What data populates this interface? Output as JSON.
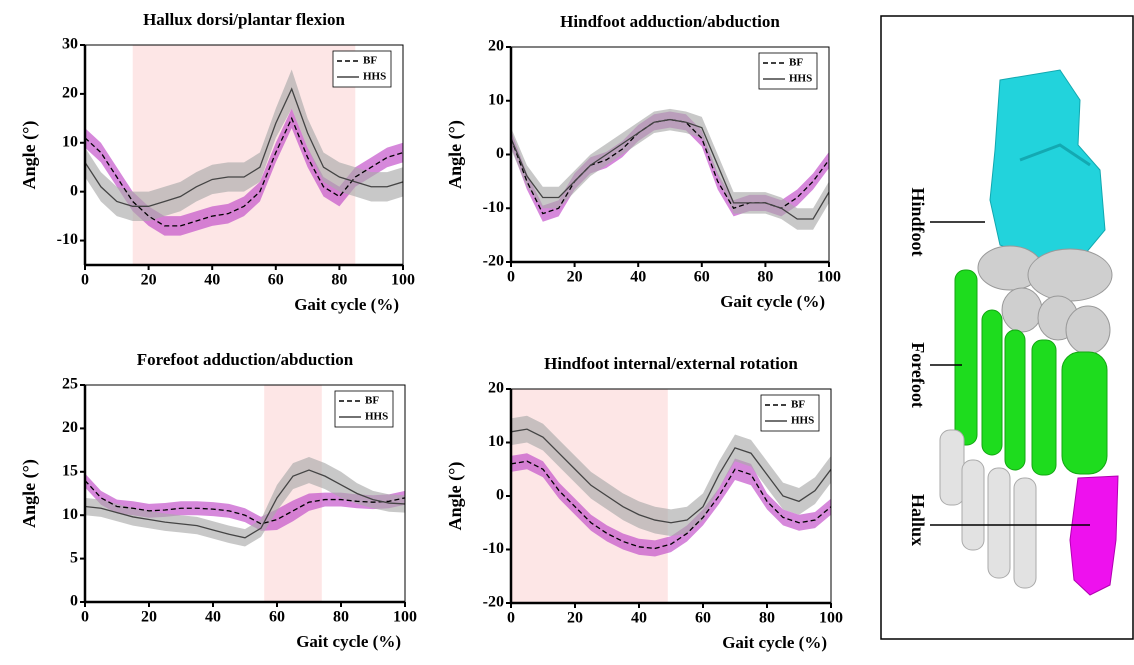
{
  "chart_data": [
    {
      "type": "line",
      "title": "Hallux dorsi/plantar flexion",
      "x_label": "Gait cycle (%)",
      "y_label": "Angle (°)",
      "xlim": [
        0,
        100
      ],
      "xticks": [
        0,
        20,
        40,
        60,
        80,
        100
      ],
      "ylim": [
        -15,
        30
      ],
      "yticks": [
        -10,
        0,
        10,
        20,
        30
      ],
      "highlight": [
        15,
        85
      ],
      "highlight_color": "#fde6e6",
      "legend": "upper right",
      "x": [
        0,
        5,
        10,
        15,
        20,
        25,
        30,
        35,
        40,
        45,
        50,
        55,
        60,
        65,
        70,
        75,
        80,
        85,
        90,
        95,
        100
      ],
      "series": [
        {
          "name": "BF",
          "color": "#000000",
          "dashed": true,
          "band_color": "#c048c8",
          "values": [
            11,
            8,
            3,
            -2,
            -5,
            -7,
            -7,
            -6,
            -5,
            -4.5,
            -3,
            0,
            8,
            15,
            7,
            1,
            -1,
            3,
            5,
            7,
            8
          ],
          "errors": [
            2,
            2,
            2,
            2,
            2,
            2,
            2,
            2,
            2,
            2,
            2,
            2,
            2,
            2,
            2,
            2,
            2,
            2,
            2,
            2,
            2
          ]
        },
        {
          "name": "HHS",
          "color": "#444444",
          "dashed": false,
          "band_color": "#aaaaaa",
          "values": [
            6,
            1,
            -2,
            -3,
            -3,
            -2,
            -1,
            1,
            2.5,
            3,
            3,
            5,
            14,
            21,
            12,
            5,
            3,
            2,
            1,
            1,
            2
          ],
          "errors": [
            3,
            3,
            3,
            3,
            3,
            3,
            3,
            3,
            3,
            3,
            3,
            3,
            3,
            4,
            3,
            3,
            3,
            3,
            3,
            3,
            3
          ]
        }
      ]
    },
    {
      "type": "line",
      "title": "Hindfoot adduction/abduction",
      "x_label": "Gait cycle (%)",
      "y_label": "Angle (°)",
      "xlim": [
        0,
        100
      ],
      "xticks": [
        0,
        20,
        40,
        60,
        80,
        100
      ],
      "ylim": [
        -20,
        20
      ],
      "yticks": [
        -20,
        -10,
        0,
        10,
        20
      ],
      "legend": "upper right",
      "x": [
        0,
        5,
        10,
        15,
        20,
        25,
        30,
        35,
        40,
        45,
        50,
        55,
        60,
        65,
        70,
        75,
        80,
        85,
        90,
        95,
        100
      ],
      "series": [
        {
          "name": "BF",
          "color": "#000000",
          "dashed": true,
          "band_color": "#c048c8",
          "values": [
            3,
            -5,
            -11,
            -10,
            -5,
            -2,
            -1,
            1,
            4,
            6,
            6.5,
            6,
            3,
            -5,
            -10,
            -9,
            -9,
            -10,
            -8,
            -5,
            -1
          ],
          "errors": [
            1.5,
            1.5,
            1.5,
            1.5,
            1.5,
            1.5,
            1.5,
            1.5,
            1.5,
            1.5,
            1.5,
            1.5,
            1.5,
            1.5,
            1.5,
            1.5,
            1.5,
            1.5,
            1.5,
            1.5,
            1.5
          ]
        },
        {
          "name": "HHS",
          "color": "#444444",
          "dashed": false,
          "band_color": "#aaaaaa",
          "values": [
            3,
            -4,
            -8,
            -8,
            -5,
            -2,
            0,
            2,
            4,
            6,
            6.5,
            6,
            5,
            -2,
            -9,
            -9,
            -9,
            -10,
            -12,
            -12,
            -7
          ],
          "errors": [
            2,
            2,
            2,
            2,
            2,
            2,
            2,
            2,
            2,
            2,
            2,
            2,
            2,
            2,
            2,
            2,
            2,
            2,
            2,
            2,
            2
          ]
        }
      ]
    },
    {
      "type": "line",
      "title": "Forefoot adduction/abduction",
      "x_label": "Gait cycle (%)",
      "y_label": "Angle (°)",
      "xlim": [
        0,
        100
      ],
      "xticks": [
        0,
        20,
        40,
        60,
        80,
        100
      ],
      "ylim": [
        0,
        25
      ],
      "yticks": [
        0,
        5,
        10,
        15,
        20,
        25
      ],
      "highlight": [
        56,
        74
      ],
      "highlight_color": "#fde6e6",
      "legend": "upper right",
      "x": [
        0,
        5,
        10,
        15,
        20,
        25,
        30,
        35,
        40,
        45,
        50,
        55,
        60,
        65,
        70,
        75,
        80,
        85,
        90,
        95,
        100
      ],
      "series": [
        {
          "name": "BF",
          "color": "#000000",
          "dashed": true,
          "band_color": "#c048c8",
          "values": [
            14,
            12,
            11,
            10.8,
            10.5,
            10.6,
            10.8,
            10.8,
            10.7,
            10.5,
            10,
            9,
            9.5,
            10.5,
            11.5,
            11.8,
            11.8,
            11.6,
            11.5,
            11.6,
            12
          ],
          "errors": [
            0.8,
            0.8,
            0.8,
            0.8,
            0.8,
            0.8,
            0.8,
            0.8,
            0.8,
            0.8,
            0.8,
            0.8,
            1.2,
            1.2,
            1,
            0.8,
            0.8,
            0.8,
            0.8,
            0.8,
            0.8
          ]
        },
        {
          "name": "HHS",
          "color": "#444444",
          "dashed": false,
          "band_color": "#aaaaaa",
          "values": [
            11,
            10.8,
            10.3,
            9.8,
            9.5,
            9.2,
            9,
            8.8,
            8.3,
            7.8,
            7.4,
            8.5,
            12,
            14.5,
            15.2,
            14.5,
            13.5,
            12.5,
            11.8,
            11.4,
            11.3
          ],
          "errors": [
            1,
            1,
            1,
            1,
            1,
            1,
            1,
            1,
            1,
            1,
            1,
            1,
            1.5,
            1.5,
            1.5,
            1.5,
            1.5,
            1.2,
            1,
            1,
            1
          ]
        }
      ]
    },
    {
      "type": "line",
      "title": "Hindfoot internal/external rotation",
      "x_label": "Gait cycle (%)",
      "y_label": "Angle (°)",
      "xlim": [
        0,
        100
      ],
      "xticks": [
        0,
        20,
        40,
        60,
        80,
        100
      ],
      "ylim": [
        -20,
        20
      ],
      "yticks": [
        -20,
        -10,
        0,
        10,
        20
      ],
      "highlight": [
        0,
        49
      ],
      "highlight_color": "#fde6e6",
      "legend": "upper right",
      "x": [
        0,
        5,
        10,
        15,
        20,
        25,
        30,
        35,
        40,
        45,
        50,
        55,
        60,
        65,
        70,
        75,
        80,
        85,
        90,
        95,
        100
      ],
      "series": [
        {
          "name": "BF",
          "color": "#000000",
          "dashed": true,
          "band_color": "#c048c8",
          "values": [
            6,
            6.5,
            5,
            1,
            -2,
            -5,
            -7,
            -8.5,
            -9.5,
            -9.8,
            -9,
            -7,
            -4,
            0,
            5,
            4,
            -1,
            -4,
            -5,
            -4.5,
            -2
          ],
          "errors": [
            1.5,
            1.5,
            1.5,
            1.5,
            1.5,
            1.5,
            1.5,
            1.5,
            1.5,
            1.5,
            1.5,
            1.5,
            1.5,
            1.5,
            2,
            2,
            1.5,
            1.5,
            1.5,
            1.5,
            1.5
          ]
        },
        {
          "name": "HHS",
          "color": "#444444",
          "dashed": false,
          "band_color": "#aaaaaa",
          "values": [
            12,
            12.5,
            11,
            8,
            5,
            2,
            0,
            -2,
            -3.5,
            -4.5,
            -5,
            -4.5,
            -2,
            4,
            9,
            8,
            4,
            0,
            -1,
            1,
            5
          ],
          "errors": [
            2.5,
            2.5,
            2.5,
            2.5,
            2.5,
            2.5,
            2.5,
            2.5,
            2.5,
            2.5,
            2.5,
            2.5,
            2.5,
            2.5,
            2.5,
            2.5,
            2.5,
            2.5,
            2.5,
            2.5,
            2.5
          ]
        }
      ]
    }
  ],
  "diagram": {
    "labels": [
      "Hindfoot",
      "Forefoot",
      "Hallux"
    ]
  }
}
